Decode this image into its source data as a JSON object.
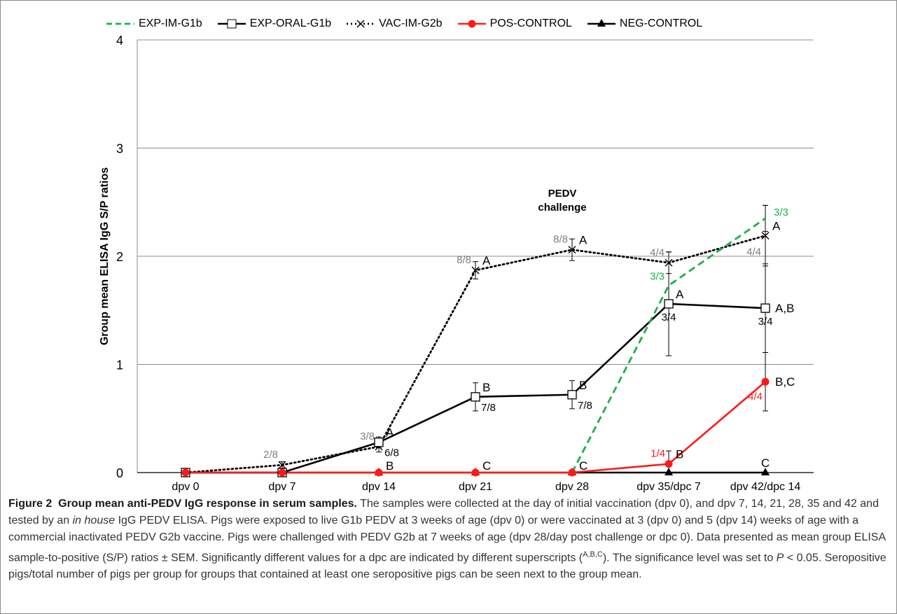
{
  "chart_data": {
    "type": "line",
    "ylabel": "Group mean ELISA IgG S/P ratios",
    "ylim": [
      0,
      4
    ],
    "yticks": [
      "0",
      "1",
      "2",
      "3",
      "4"
    ],
    "categories": [
      "dpv 0",
      "dpv 7",
      "dpv 14",
      "dpv 21",
      "dpv 28",
      "dpv 35/dpc 7",
      "dpv 42/dpc 14"
    ],
    "grid": "horizontal",
    "legend_position": "top",
    "annotation": {
      "line1": "PEDV",
      "line2": "challenge"
    },
    "series": [
      {
        "name": "EXP-IM-G1b",
        "style": "dashed",
        "marker": "none",
        "color": "#1fae4a",
        "values": [
          null,
          null,
          null,
          null,
          0,
          1.73,
          2.35
        ],
        "errors": [
          null,
          null,
          null,
          null,
          null,
          null,
          0.12
        ],
        "counts": [
          null,
          null,
          null,
          null,
          null,
          "3/3",
          "3/3"
        ]
      },
      {
        "name": "EXP-ORAL-G1b",
        "style": "solid",
        "marker": "square",
        "color": "#000000",
        "values": [
          0,
          0,
          0.28,
          0.7,
          0.72,
          1.56,
          1.52
        ],
        "errors": [
          null,
          null,
          0.05,
          0.13,
          0.13,
          0.48,
          0.41
        ],
        "counts": [
          null,
          null,
          "6/8",
          "7/8",
          "7/8",
          "3/4",
          "3/4"
        ]
      },
      {
        "name": "VAC-IM-G2b",
        "style": "dotted",
        "marker": "x",
        "color": "#000000",
        "values": [
          0,
          0.07,
          0.24,
          1.87,
          2.06,
          1.94,
          2.19
        ],
        "errors": [
          null,
          0.03,
          0.05,
          0.08,
          0.1,
          0.1,
          0.28
        ],
        "counts": [
          null,
          "2/8",
          "3/8",
          "8/8",
          "8/8",
          "4/4",
          "4/4"
        ]
      },
      {
        "name": "POS-CONTROL",
        "style": "solid",
        "marker": "circle",
        "color": "#ff1a1a",
        "values": [
          0,
          0,
          0,
          0,
          0,
          0.08,
          0.84
        ],
        "errors": [
          null,
          null,
          null,
          null,
          null,
          0.12,
          0.27
        ],
        "counts": [
          null,
          null,
          null,
          null,
          null,
          "1/4",
          "4/4"
        ]
      },
      {
        "name": "NEG-CONTROL",
        "style": "solid",
        "marker": "triangle",
        "color": "#000000",
        "values": [
          0,
          0,
          0,
          0,
          0,
          0,
          0
        ],
        "errors": [
          null,
          null,
          null,
          null,
          null,
          null,
          null
        ],
        "counts": [
          null,
          null,
          null,
          null,
          null,
          null,
          null
        ]
      }
    ],
    "significance": [
      {
        "x": 2,
        "y": 0.28,
        "text": "A"
      },
      {
        "x": 2,
        "y": 0,
        "text": "B"
      },
      {
        "x": 3,
        "y": 1.87,
        "text": "A"
      },
      {
        "x": 3,
        "y": 0.7,
        "text": "B"
      },
      {
        "x": 3,
        "y": 0,
        "text": "C"
      },
      {
        "x": 4,
        "y": 2.06,
        "text": "A"
      },
      {
        "x": 4,
        "y": 0.72,
        "text": "B"
      },
      {
        "x": 4,
        "y": 0,
        "text": "C"
      },
      {
        "x": 5,
        "y": 1.56,
        "text": "A"
      },
      {
        "x": 5,
        "y": 0.08,
        "text": "B"
      },
      {
        "x": 6,
        "y": 2.19,
        "text": "A"
      },
      {
        "x": 6,
        "y": 1.52,
        "text": "A,B"
      },
      {
        "x": 6,
        "y": 0.84,
        "text": "B,C"
      },
      {
        "x": 6,
        "y": 0,
        "text": "C"
      }
    ]
  },
  "caption": {
    "label": "Figure 2",
    "title": "Group mean anti-PEDV IgG response in serum samples.",
    "body_part1": " The samples were collected at the day of initial vaccination (dpv 0), and dpv 7, 14, 21, 28, 35 and 42 and tested by an ",
    "in_house": "in house",
    "body_part2": " IgG PEDV ELISA. Pigs were exposed to live G1b PEDV at 3 weeks of age (dpv 0) or were vaccinated at 3 (dpv 0) and 5 (dpv 14) weeks of age with a commercial inactivated PEDV G2b vaccine. Pigs were challenged with PEDV G2b at 7 weeks of age (dpv 28/day post challenge or dpc 0). Data presented as mean group ELISA sample-to-positive (S/P) ratios ± SEM. Significantly different values for a dpc are indicated by different superscripts (",
    "superscripts": "A,B,C",
    "body_part3": "). The significance level was set to ",
    "p_symbol": "P",
    "body_part4": " < 0.05. Seropositive pigs/total number of pigs per group for groups that contained at least one seropositive pigs can be seen next to the group mean."
  }
}
